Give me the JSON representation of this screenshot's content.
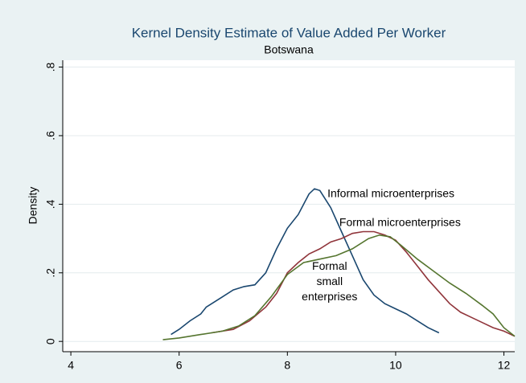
{
  "chart_data": {
    "type": "line",
    "title": "Kernel Density Estimate of Value Added Per Worker",
    "subtitle": "Botswana",
    "ylabel": "Density",
    "xlim": [
      3.85,
      12.2
    ],
    "ylim": [
      -0.03,
      0.82
    ],
    "xticks": [
      4,
      6,
      8,
      10,
      12
    ],
    "yticks": [
      0,
      {
        "value": 0.2,
        "label": ".2"
      },
      {
        "value": 0.4,
        "label": ".4"
      },
      {
        "value": 0.6,
        "label": ".6"
      },
      {
        "value": 0.8,
        "label": ".8"
      }
    ],
    "grid": true,
    "series": [
      {
        "name": "Informal microenterprises",
        "color": "#1a476f",
        "x": [
          5.85,
          6.0,
          6.2,
          6.4,
          6.5,
          6.8,
          7.0,
          7.2,
          7.4,
          7.6,
          7.8,
          8.0,
          8.2,
          8.4,
          8.5,
          8.6,
          8.8,
          9.0,
          9.2,
          9.4,
          9.6,
          9.8,
          10.0,
          10.2,
          10.4,
          10.6,
          10.8
        ],
        "values": [
          0.02,
          0.035,
          0.06,
          0.08,
          0.1,
          0.13,
          0.15,
          0.16,
          0.165,
          0.2,
          0.27,
          0.33,
          0.37,
          0.43,
          0.445,
          0.44,
          0.39,
          0.32,
          0.25,
          0.18,
          0.135,
          0.11,
          0.095,
          0.08,
          0.06,
          0.04,
          0.025
        ]
      },
      {
        "name": "Formal microenterprises",
        "color": "#90353b",
        "x": [
          6.6,
          7.0,
          7.3,
          7.6,
          7.8,
          8.0,
          8.2,
          8.4,
          8.6,
          8.8,
          9.0,
          9.2,
          9.4,
          9.6,
          9.8,
          10.0,
          10.2,
          10.4,
          10.6,
          10.8,
          11.0,
          11.2,
          11.4,
          11.6,
          11.8,
          12.0,
          12.2
        ],
        "values": [
          0.025,
          0.035,
          0.06,
          0.1,
          0.14,
          0.2,
          0.23,
          0.255,
          0.27,
          0.29,
          0.3,
          0.315,
          0.32,
          0.32,
          0.31,
          0.295,
          0.26,
          0.22,
          0.18,
          0.145,
          0.11,
          0.085,
          0.07,
          0.055,
          0.04,
          0.03,
          0.015
        ]
      },
      {
        "name": "Formal small enterprises",
        "color": "#55752f",
        "x": [
          5.7,
          6.0,
          6.4,
          6.8,
          7.1,
          7.4,
          7.7,
          8.0,
          8.3,
          8.6,
          8.9,
          9.2,
          9.5,
          9.7,
          9.9,
          10.1,
          10.4,
          10.7,
          11.0,
          11.3,
          11.6,
          11.8,
          12.0,
          12.2
        ],
        "values": [
          0.005,
          0.01,
          0.02,
          0.03,
          0.045,
          0.075,
          0.13,
          0.195,
          0.23,
          0.24,
          0.25,
          0.27,
          0.3,
          0.31,
          0.305,
          0.28,
          0.24,
          0.205,
          0.17,
          0.14,
          0.105,
          0.08,
          0.04,
          0.015
        ]
      }
    ],
    "annotations": [
      {
        "lines": [
          "Informal microenterprises"
        ],
        "x": 8.74,
        "y": 0.43,
        "anchor": "start"
      },
      {
        "lines": [
          "Formal microenterprises"
        ],
        "x": 8.96,
        "y": 0.345,
        "anchor": "start"
      },
      {
        "lines": [
          "Formal",
          "small",
          "enterprises"
        ],
        "x": 8.78,
        "y": 0.217,
        "anchor": "middle"
      }
    ]
  }
}
